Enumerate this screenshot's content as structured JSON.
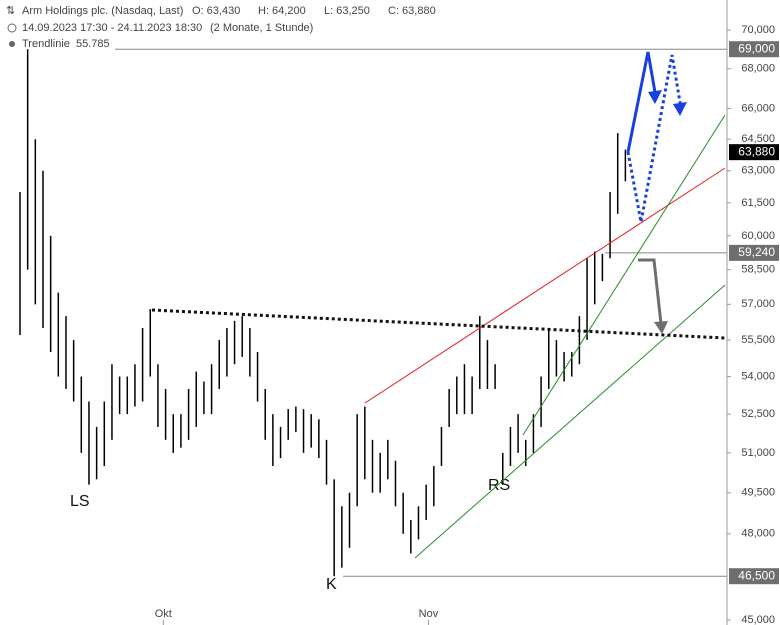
{
  "chart_data": {
    "type": "ohlc",
    "title": "Arm Holdings plc. (Nasdaq, Last)",
    "ohlc": [
      "O: 63,430",
      "H: 64,200",
      "L: 63,250",
      "C: 63,880"
    ],
    "period": "14.09.2023 17:30 - 24.11.2023 18:30",
    "period_note": "(2 Monate, 1 Stunde)",
    "indicator": {
      "name": "Trendlinie",
      "value": "55.785"
    },
    "annotations": [
      "LS",
      "K",
      "RS"
    ],
    "log_scale": true,
    "xlim": [
      0,
      92
    ],
    "xticks": [
      {
        "value": 18.7,
        "label": "Okt"
      },
      {
        "value": 53.3,
        "label": "Nov"
      }
    ],
    "ylim": [
      45000,
      70000
    ],
    "yticks": [
      {
        "value": 70000,
        "label": "70,000"
      },
      {
        "value": 68000,
        "label": "68,000"
      },
      {
        "value": 66000,
        "label": "66,000"
      },
      {
        "value": 64500,
        "label": "64,500"
      },
      {
        "value": 63000,
        "label": "63,000"
      },
      {
        "value": 61500,
        "label": "61,500"
      },
      {
        "value": 60000,
        "label": "60,000"
      },
      {
        "value": 58500,
        "label": "58,500"
      },
      {
        "value": 57000,
        "label": "57,000"
      },
      {
        "value": 55500,
        "label": "55,500"
      },
      {
        "value": 54000,
        "label": "54,000"
      },
      {
        "value": 52500,
        "label": "52,500"
      },
      {
        "value": 51000,
        "label": "51,000"
      },
      {
        "value": 49500,
        "label": "49,500"
      },
      {
        "value": 48000,
        "label": "48,000"
      },
      {
        "value": 45000,
        "label": "45,000"
      }
    ],
    "price_labels": [
      {
        "value": 69000,
        "label": "69,000",
        "color": "#6e6e6e"
      },
      {
        "value": 63880,
        "label": "63,880",
        "color": "#000000"
      },
      {
        "value": 59240,
        "label": "59,240",
        "color": "#6e6e6e"
      },
      {
        "value": 46500,
        "label": "46,500",
        "color": "#6e6e6e"
      }
    ],
    "series": [
      {
        "color": "#000000",
        "high": [
          62000,
          69000,
          64500,
          63000,
          60000,
          57500,
          56500,
          55500,
          54000,
          53000,
          52000,
          53000,
          54500,
          54000,
          54000,
          54500,
          56000,
          56800,
          54500,
          53500,
          52500,
          52500,
          53500,
          54200,
          53800,
          54500,
          55500,
          56000,
          56300,
          56500,
          56000,
          55000,
          53500,
          52500,
          52000,
          52700,
          52800,
          52700,
          52500,
          52300,
          51500,
          50000,
          49000,
          49500,
          52500,
          52800,
          51500,
          51000,
          51500,
          50700,
          49500,
          48500,
          49000,
          49800,
          50500,
          52000,
          53500,
          54000,
          54500,
          54000,
          56500,
          55500,
          54500,
          51000,
          52000,
          52500,
          51500,
          52500,
          54000,
          56000,
          55500,
          55000,
          55000,
          56500,
          59000,
          59300,
          59200,
          62000,
          64800,
          64000
        ],
        "low": [
          55700,
          58500,
          57000,
          56000,
          55000,
          54000,
          53500,
          53000,
          51000,
          49800,
          50000,
          50500,
          51500,
          52500,
          52500,
          52800,
          53000,
          54000,
          52000,
          51500,
          51000,
          51200,
          51500,
          52000,
          52500,
          52500,
          53500,
          54000,
          54500,
          54800,
          54000,
          53000,
          51500,
          50500,
          50800,
          51500,
          51800,
          51000,
          51200,
          50800,
          49800,
          46500,
          46800,
          47500,
          49000,
          50000,
          49500,
          49500,
          50000,
          49000,
          48000,
          47300,
          47800,
          48500,
          49000,
          50500,
          52000,
          52500,
          52500,
          52500,
          53500,
          53500,
          53500,
          49800,
          50500,
          51000,
          50500,
          51000,
          52000,
          53500,
          54000,
          53800,
          54000,
          54500,
          55500,
          57000,
          58000,
          59000,
          61000,
          62500
        ]
      }
    ]
  }
}
